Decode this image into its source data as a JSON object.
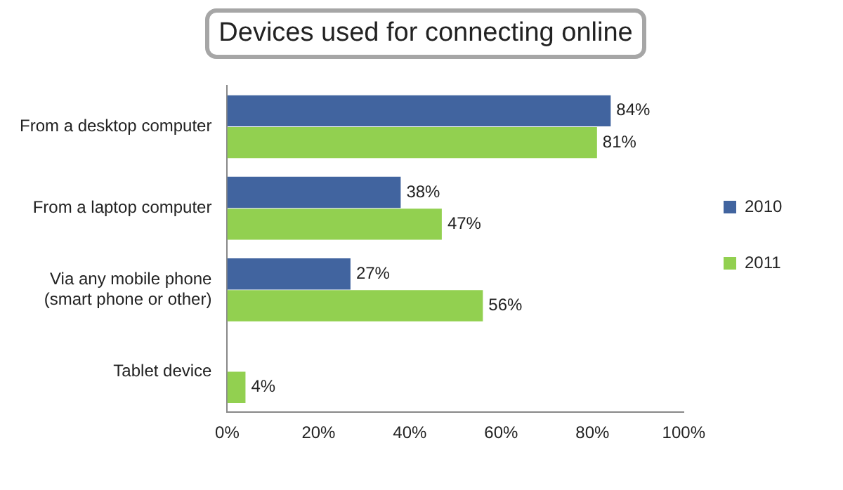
{
  "chart_data": {
    "type": "bar",
    "orientation": "horizontal",
    "title": "Devices used for connecting online",
    "categories": [
      "From a desktop computer",
      "From a laptop computer",
      "Via any mobile phone (smart phone or other)",
      "Tablet device"
    ],
    "series": [
      {
        "name": "2010",
        "color": "#41649f",
        "values": [
          84,
          38,
          27,
          null
        ],
        "value_labels": [
          "84%",
          "38%",
          "27%",
          null
        ]
      },
      {
        "name": "2011",
        "color": "#92d050",
        "values": [
          81,
          47,
          56,
          4
        ],
        "value_labels": [
          "81%",
          "47%",
          "56%",
          "4%"
        ]
      }
    ],
    "xlim": [
      0,
      100
    ],
    "xticks": [
      {
        "value": 0,
        "label": "0%"
      },
      {
        "value": 20,
        "label": "20%"
      },
      {
        "value": 40,
        "label": "40%"
      },
      {
        "value": 60,
        "label": "60%"
      },
      {
        "value": 80,
        "label": "80%"
      },
      {
        "value": 100,
        "label": "100%"
      }
    ],
    "grid": false,
    "legend": "right"
  }
}
